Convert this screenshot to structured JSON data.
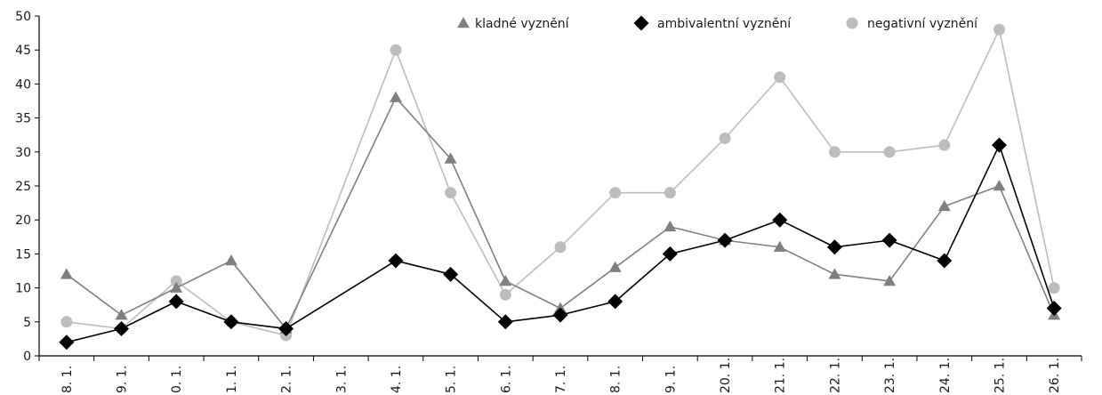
{
  "chart_data": {
    "type": "line",
    "title": "",
    "xlabel": "",
    "ylabel": "",
    "ylim": [
      0,
      50
    ],
    "yticks": [
      0,
      5,
      10,
      15,
      20,
      25,
      30,
      35,
      40,
      45,
      50
    ],
    "categories": [
      "8. 1.",
      "9. 1.",
      "0. 1.",
      "1. 1.",
      "2. 1.",
      "3. 1.",
      "4. 1.",
      "5. 1.",
      "6. 1.",
      "7. 1.",
      "8. 1.",
      "9. 1.",
      "20. 1.",
      "21. 1.",
      "22. 1.",
      "23. 1.",
      "24. 1.",
      "25. 1.",
      "26. 1."
    ],
    "grid": false,
    "legend_position": "top-right",
    "series": [
      {
        "name": "kladné vyznění",
        "marker": "triangle",
        "color": "#808080",
        "values": [
          12,
          6,
          10,
          14,
          4,
          null,
          38,
          29,
          11,
          7,
          13,
          19,
          17,
          16,
          12,
          11,
          22,
          25,
          6
        ]
      },
      {
        "name": "ambivalentní vyznění",
        "marker": "diamond",
        "color": "#000000",
        "values": [
          2,
          4,
          8,
          5,
          4,
          null,
          14,
          12,
          5,
          6,
          8,
          15,
          17,
          20,
          16,
          17,
          14,
          31,
          7
        ]
      },
      {
        "name": "negativní vyznění",
        "marker": "circle",
        "color": "#bdbdbd",
        "values": [
          5,
          4,
          11,
          5,
          3,
          null,
          45,
          24,
          9,
          16,
          24,
          24,
          32,
          41,
          30,
          30,
          31,
          48,
          10
        ]
      }
    ]
  }
}
